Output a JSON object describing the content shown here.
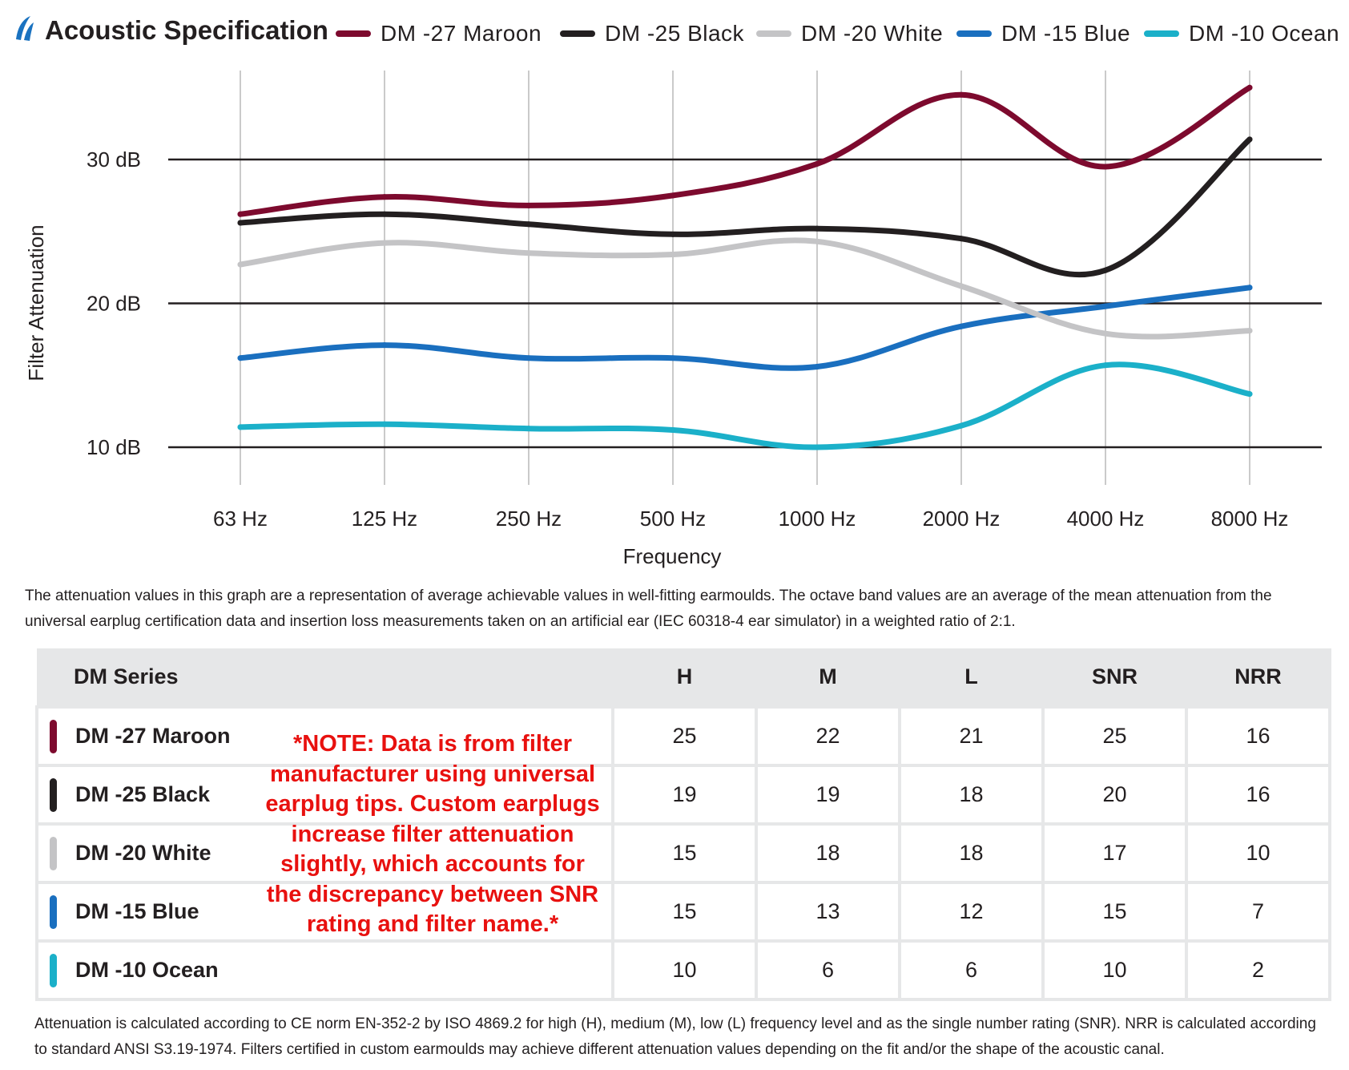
{
  "title": "Acoustic Specification",
  "colors": {
    "maroon": "#7d0a2e",
    "black": "#231f20",
    "white": "#c4c4c6",
    "blue": "#1a6fbf",
    "ocean": "#1bb0c9",
    "logo": "#1a72c0",
    "note": "#e8110f"
  },
  "chart_data": {
    "type": "line",
    "title": "Acoustic Specification",
    "xlabel": "Frequency",
    "ylabel": "Filter Attenuation",
    "categories": [
      "63 Hz",
      "125 Hz",
      "250 Hz",
      "500 Hz",
      "1000 Hz",
      "2000 Hz",
      "4000 Hz",
      "8000 Hz"
    ],
    "yticks": [
      {
        "value": 10,
        "label": "10 dB"
      },
      {
        "value": 20,
        "label": "20 dB"
      },
      {
        "value": 30,
        "label": "30 dB"
      }
    ],
    "ylim": [
      7.5,
      36.5
    ],
    "legend_position": "top",
    "series": [
      {
        "name": "DM -27 Maroon",
        "color": "#7d0a2e",
        "values": [
          26.2,
          27.4,
          26.8,
          27.5,
          29.7,
          34.5,
          29.5,
          35.0
        ]
      },
      {
        "name": "DM -25 Black",
        "color": "#231f20",
        "values": [
          25.6,
          26.2,
          25.5,
          24.8,
          25.2,
          24.5,
          22.3,
          31.4
        ]
      },
      {
        "name": "DM -20 White",
        "color": "#c4c4c6",
        "values": [
          22.7,
          24.2,
          23.5,
          23.4,
          24.3,
          21.2,
          17.9,
          18.1
        ]
      },
      {
        "name": "DM -15 Blue",
        "color": "#1a6fbf",
        "values": [
          16.2,
          17.1,
          16.2,
          16.2,
          15.6,
          18.4,
          19.8,
          21.1
        ]
      },
      {
        "name": "DM -10 Ocean",
        "color": "#1bb0c9",
        "values": [
          11.4,
          11.6,
          11.3,
          11.2,
          10.0,
          11.5,
          15.7,
          13.7
        ]
      }
    ]
  },
  "caption": "The attenuation values in this graph are a representation of average achievable values in well-fitting earmoulds. The octave band values are an average of the mean attenuation from the universal earplug certification data and insertion loss measurements taken on an artificial ear (IEC 60318-4 ear simulator) in a weighted ratio of 2:1.",
  "table": {
    "headers": [
      "DM Series",
      "H",
      "M",
      "L",
      "SNR",
      "NRR"
    ],
    "rows": [
      {
        "name": "DM -27 Maroon",
        "color": "#7d0a2e",
        "values": [
          "25",
          "22",
          "21",
          "25",
          "16"
        ]
      },
      {
        "name": "DM -25 Black",
        "color": "#231f20",
        "values": [
          "19",
          "19",
          "18",
          "20",
          "16"
        ]
      },
      {
        "name": "DM -20 White",
        "color": "#c4c4c6",
        "values": [
          "15",
          "18",
          "18",
          "17",
          "10"
        ]
      },
      {
        "name": "DM -15 Blue",
        "color": "#1a6fbf",
        "values": [
          "15",
          "13",
          "12",
          "15",
          "7"
        ]
      },
      {
        "name": "DM -10 Ocean",
        "color": "#1bb0c9",
        "values": [
          "10",
          "6",
          "6",
          "10",
          "2"
        ]
      }
    ]
  },
  "note": "*NOTE: Data is from filter manufacturer using universal earplug tips. Custom earplugs increase filter attenuation slightly, which accounts for the discrepancy between SNR rating and filter name.*",
  "footnote": "Attenuation is calculated according to CE norm EN-352-2 by ISO 4869.2 for high (H), medium (M), low (L) frequency level and as the single number rating (SNR). NRR is calculated according to standard ANSI S3.19-1974. Filters certified in custom earmoulds may achieve different attenuation values depending on the fit and/or the shape of the acoustic canal."
}
